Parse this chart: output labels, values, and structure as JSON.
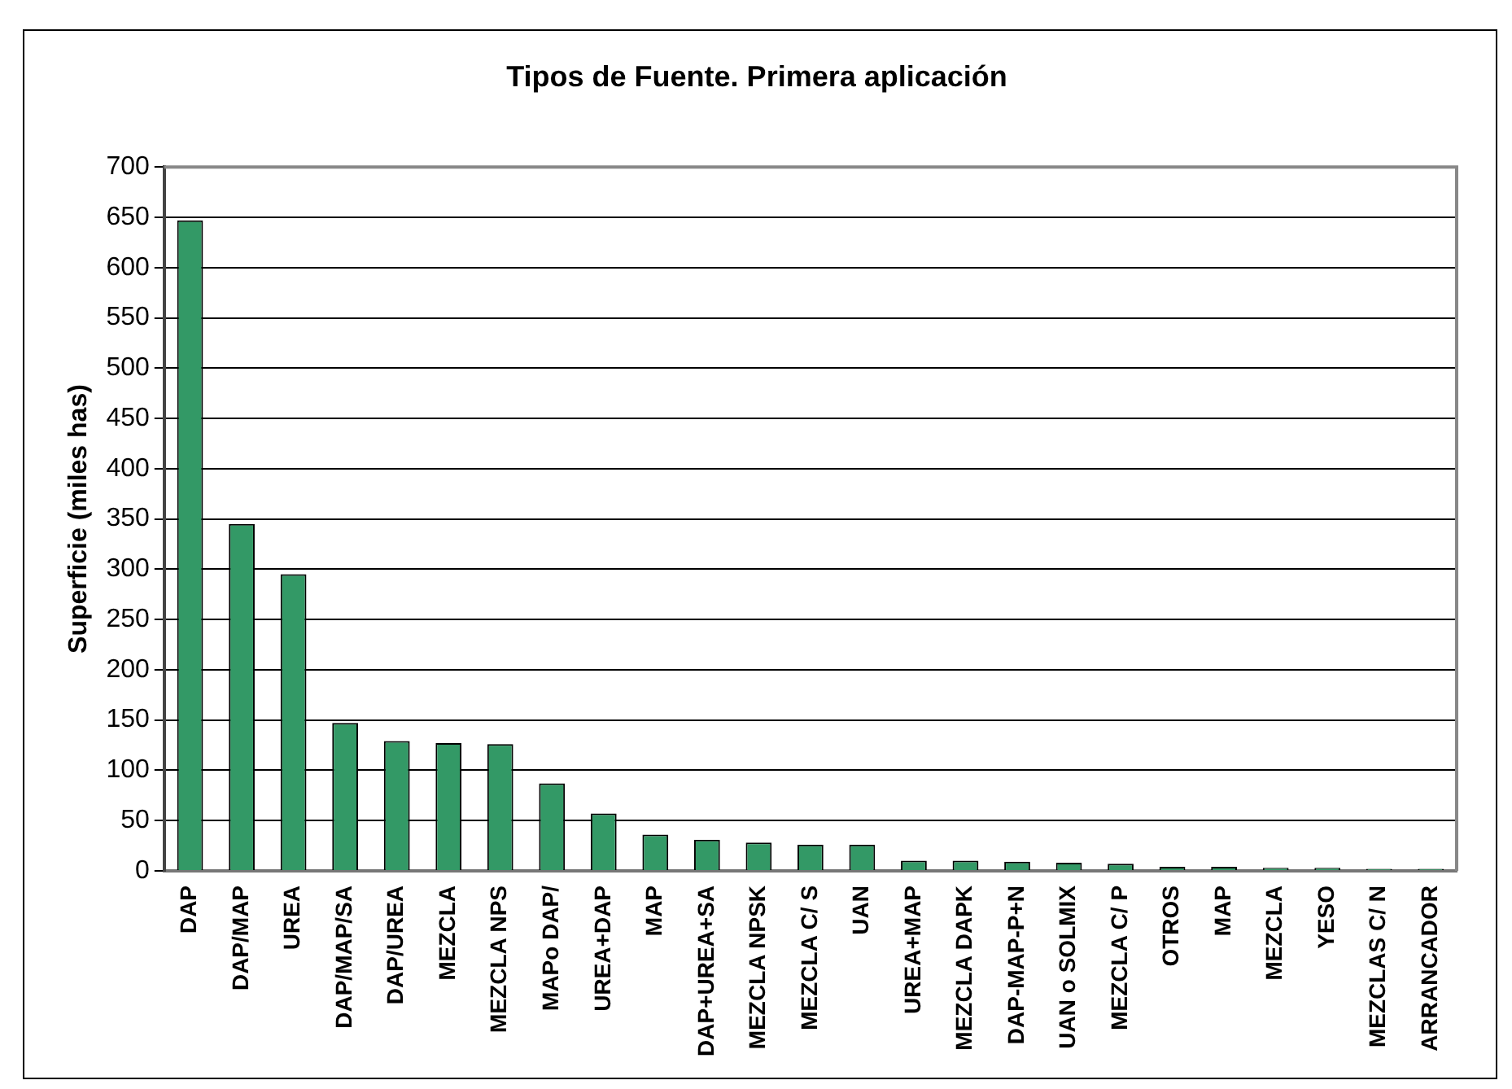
{
  "chart_data": {
    "type": "bar",
    "title": "Tipos de Fuente. Primera aplicación",
    "ylabel": "Superficie (miles has)",
    "categories": [
      "DAP",
      "DAP/MAP",
      "UREA",
      "DAP/MAP/SA",
      "DAP/UREA",
      "MEZCLA",
      "MEZCLA NPS",
      "MAPo DAP/",
      "UREA+DAP",
      "MAP",
      "DAP+UREA+SA",
      "MEZCLA NPSK",
      "MEZCLA C/ S",
      "UAN",
      "UREA+MAP",
      "MEZCLA DAPK",
      "DAP-MAP-P+N",
      "UAN o SOLMIX",
      "MEZCLA C/ P",
      "OTROS",
      "MAP",
      "MEZCLA",
      "YESO",
      "MEZCLAS C/ N",
      "ARRANCADOR"
    ],
    "values": [
      647,
      345,
      295,
      147,
      129,
      127,
      126,
      87,
      57,
      36,
      31,
      28,
      26,
      26,
      10,
      10,
      9,
      8,
      7,
      4,
      4,
      3,
      3,
      2,
      2
    ],
    "color": "#339966",
    "ylim": [
      0,
      700
    ],
    "yticks": [
      0,
      50,
      100,
      150,
      200,
      250,
      300,
      350,
      400,
      450,
      500,
      550,
      600,
      650,
      700
    ],
    "grid": "y",
    "legend": false
  }
}
